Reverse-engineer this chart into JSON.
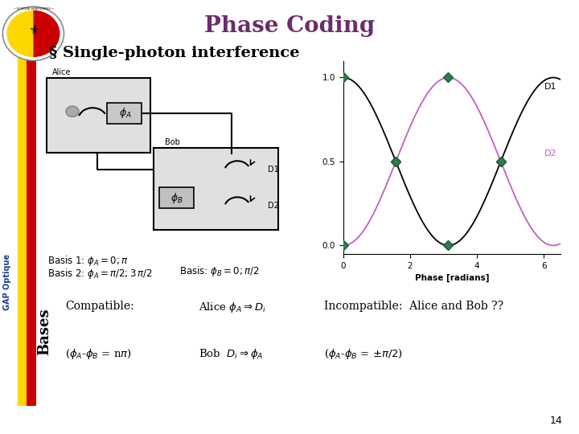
{
  "title": "Phase Coding",
  "title_color": "#6B2D6B",
  "bg_color": "#ffffff",
  "subtitle": "§ Single-photon interference",
  "basis1": "Basis 1: $\\phi_A = 0; \\pi$",
  "basis2": "Basis 2: $\\phi_A = \\pi/2; 3\\,\\pi/2$",
  "basis_bob": "Basis: $\\phi_B = 0; \\pi/2$",
  "plot_xlabel": "Phase [radians]",
  "plot_xticks": [
    0,
    2,
    4,
    6
  ],
  "plot_yticks": [
    0,
    0.5,
    1
  ],
  "plot_xlim": [
    0,
    6.5
  ],
  "plot_ylim": [
    -0.05,
    1.1
  ],
  "d1_label": "D1",
  "d2_label": "D2",
  "d1_color": "#000000",
  "d2_color": "#C060C0",
  "marker_color": "#2E7D4F",
  "marker_points_x": [
    0.0,
    1.5708,
    3.1416,
    4.7124
  ],
  "gap_label": "GAP Optique",
  "gap_color": "#1B3A8C",
  "bases_label": "Bases",
  "compat_title": "Compatible:",
  "compat_line1_full": "($\\phi_A$-$\\phi_B$ = n$\\pi$)",
  "compat_alice": "Alice $\\phi_A \\Rightarrow D_i$",
  "compat_bob": "Bob  $D_i \\Rightarrow \\phi_A$",
  "incompat_title": "Incompatible:  Alice and Bob ??",
  "incompat_line": "($\\phi_A$-$\\phi_B$ = $\\pm\\pi/2$)",
  "table_bg": "#d8d8d8",
  "slide_num": "14",
  "yellow_bar_color": "#FFD700",
  "red_bar_color": "#CC0000",
  "alice_label": "Alice",
  "bob_label": "Bob",
  "phi_a_label": "$\\phi_A$",
  "phi_b_label": "$\\phi_B$"
}
